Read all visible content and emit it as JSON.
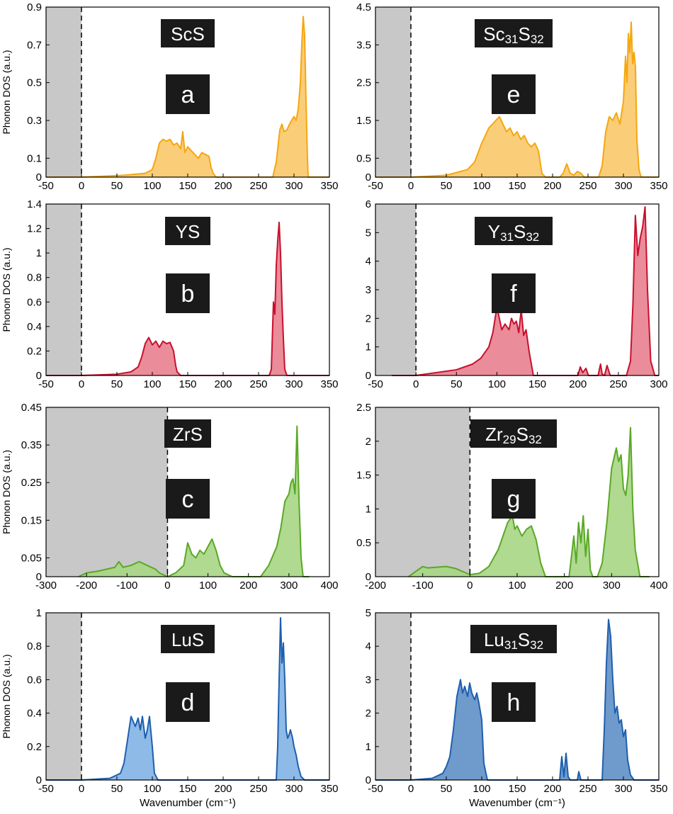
{
  "chart_data": [
    {
      "id": "a",
      "type": "area",
      "panel_letter": "a",
      "label_parts": [
        {
          "t": "ScS",
          "sub": false
        }
      ],
      "ylabel": "Phonon DOS (a.u.)",
      "xlabel": "",
      "xlim": [
        -50,
        350
      ],
      "ylim": [
        0,
        0.9
      ],
      "imag_region": [
        -50,
        0
      ],
      "xticks": [
        "-50",
        "0",
        "50",
        "100",
        "150",
        "200",
        "250",
        "300",
        "350"
      ],
      "yticks": [
        "0",
        "0.1",
        "0.3",
        "0.5",
        "0.7",
        "0.9"
      ],
      "color": "#f5a70f",
      "fill": "#f9c86a",
      "series": [
        {
          "x": [
            -50,
            0,
            60,
            90,
            100,
            105,
            110,
            115,
            120,
            125,
            130,
            135,
            140,
            143,
            146,
            150,
            155,
            160,
            165,
            170,
            175,
            180,
            183,
            186,
            190,
            270,
            275,
            280,
            283,
            286,
            290,
            295,
            300,
            303,
            306,
            309,
            311,
            313,
            315,
            317,
            319,
            320,
            325,
            350
          ],
          "y": [
            0,
            0,
            0.01,
            0.02,
            0.04,
            0.1,
            0.18,
            0.2,
            0.19,
            0.2,
            0.17,
            0.18,
            0.15,
            0.24,
            0.13,
            0.16,
            0.14,
            0.12,
            0.1,
            0.13,
            0.12,
            0.11,
            0.05,
            0.02,
            0,
            0,
            0.08,
            0.25,
            0.28,
            0.24,
            0.25,
            0.29,
            0.32,
            0.3,
            0.36,
            0.5,
            0.7,
            0.85,
            0.75,
            0.4,
            0.1,
            0,
            0,
            0
          ]
        }
      ]
    },
    {
      "id": "e",
      "type": "area",
      "panel_letter": "e",
      "label_parts": [
        {
          "t": "Sc",
          "sub": false
        },
        {
          "t": "31",
          "sub": true
        },
        {
          "t": "S",
          "sub": false
        },
        {
          "t": "32",
          "sub": true
        }
      ],
      "ylabel": "",
      "xlabel": "",
      "xlim": [
        -50,
        350
      ],
      "ylim": [
        0,
        4.5
      ],
      "imag_region": [
        -50,
        0
      ],
      "xticks": [
        "-50",
        "0",
        "50",
        "100",
        "150",
        "200",
        "250",
        "300",
        "350"
      ],
      "yticks": [
        "0",
        "0.5",
        "1.5",
        "2.5",
        "3.5",
        "4.5"
      ],
      "color": "#f5a70f",
      "fill": "#f9c86a",
      "series": [
        {
          "x": [
            -50,
            0,
            50,
            80,
            90,
            100,
            110,
            120,
            125,
            130,
            135,
            140,
            145,
            150,
            155,
            160,
            165,
            170,
            175,
            180,
            185,
            190,
            210,
            215,
            220,
            225,
            230,
            235,
            240,
            245,
            265,
            270,
            275,
            280,
            285,
            290,
            295,
            300,
            303,
            305,
            307,
            309,
            311,
            313,
            315,
            317,
            319,
            322,
            325,
            350
          ],
          "y": [
            0,
            0,
            0.05,
            0.2,
            0.4,
            0.9,
            1.3,
            1.5,
            1.6,
            1.4,
            1.2,
            1.3,
            1.1,
            1.2,
            1.0,
            1.1,
            0.9,
            0.8,
            0.9,
            0.7,
            0.1,
            0,
            0,
            0.1,
            0.35,
            0.1,
            0.05,
            0.15,
            0.1,
            0,
            0,
            0.3,
            1.2,
            1.6,
            1.5,
            1.7,
            1.4,
            2.0,
            3.2,
            2.5,
            3.8,
            3.3,
            4.1,
            3.0,
            3.3,
            2.9,
            1.0,
            0.2,
            0,
            0
          ]
        }
      ]
    },
    {
      "id": "b",
      "type": "area",
      "panel_letter": "b",
      "label_parts": [
        {
          "t": "YS",
          "sub": false
        }
      ],
      "ylabel": "Phonon DOS (a.u.)",
      "xlabel": "",
      "xlim": [
        -50,
        350
      ],
      "ylim": [
        0,
        1.4
      ],
      "imag_region": [
        -50,
        0
      ],
      "xticks": [
        "-50",
        "0",
        "50",
        "100",
        "150",
        "200",
        "250",
        "300",
        "350"
      ],
      "yticks": [
        "0",
        "0.2",
        "0.4",
        "0.6",
        "0.8",
        "1",
        "1.2",
        "1.4"
      ],
      "color": "#c8102e",
      "fill": "#e8808f",
      "series": [
        {
          "x": [
            -50,
            0,
            50,
            70,
            80,
            85,
            90,
            95,
            100,
            105,
            110,
            115,
            120,
            125,
            130,
            133,
            135,
            140,
            265,
            268,
            271,
            273,
            275,
            277,
            279,
            281,
            283,
            285,
            287,
            290,
            350
          ],
          "y": [
            0,
            0,
            0.01,
            0.03,
            0.07,
            0.15,
            0.26,
            0.31,
            0.25,
            0.28,
            0.23,
            0.28,
            0.26,
            0.27,
            0.2,
            0.08,
            0.03,
            0,
            0,
            0.05,
            0.6,
            0.5,
            0.9,
            1.1,
            1.25,
            1.0,
            0.6,
            0.3,
            0.05,
            0,
            0
          ]
        }
      ]
    },
    {
      "id": "f",
      "type": "area",
      "panel_letter": "f",
      "label_parts": [
        {
          "t": "Y",
          "sub": false
        },
        {
          "t": "31",
          "sub": true
        },
        {
          "t": "S",
          "sub": false
        },
        {
          "t": "32",
          "sub": true
        }
      ],
      "ylabel": "",
      "xlabel": "",
      "xlim": [
        -50,
        300
      ],
      "ylim": [
        0,
        6
      ],
      "imag_region": [
        -50,
        0
      ],
      "xticks": [
        "-50",
        "0",
        "50",
        "100",
        "150",
        "200",
        "250",
        "300"
      ],
      "yticks": [
        "0",
        "1",
        "2",
        "3",
        "4",
        "5",
        "6"
      ],
      "color": "#c8102e",
      "fill": "#e8808f",
      "series": [
        {
          "x": [
            -30,
            0,
            50,
            70,
            80,
            90,
            95,
            100,
            103,
            106,
            110,
            115,
            118,
            121,
            124,
            127,
            130,
            133,
            136,
            140,
            145,
            200,
            203,
            206,
            210,
            213,
            225,
            228,
            230,
            233,
            236,
            240,
            260,
            265,
            268,
            271,
            274,
            277,
            280,
            283,
            286,
            290,
            295,
            300
          ],
          "y": [
            0,
            0,
            0.2,
            0.4,
            0.6,
            1.0,
            1.5,
            2.4,
            2.0,
            1.6,
            1.8,
            1.6,
            2.0,
            1.8,
            1.9,
            1.5,
            2.3,
            1.4,
            1.6,
            0.8,
            0,
            0,
            0.3,
            0.1,
            0.25,
            0,
            0,
            0.4,
            0.05,
            0,
            0.35,
            0,
            0,
            0.5,
            2.5,
            5.6,
            4.2,
            4.8,
            5.2,
            5.9,
            3.0,
            0.5,
            0,
            0
          ]
        }
      ]
    },
    {
      "id": "c",
      "type": "area",
      "panel_letter": "c",
      "label_parts": [
        {
          "t": "ZrS",
          "sub": false
        }
      ],
      "ylabel": "Phonon DOS (a.u.)",
      "xlabel": "",
      "xlim": [
        -300,
        400
      ],
      "ylim": [
        0,
        0.45
      ],
      "imag_region": [
        -300,
        0
      ],
      "xticks": [
        "-300",
        "-200",
        "-100",
        "0",
        "100",
        "200",
        "300",
        "400"
      ],
      "yticks": [
        "0",
        "0.05",
        "0.15",
        "0.25",
        "0.35",
        "0.45"
      ],
      "color": "#5aa827",
      "fill": "#a6d683",
      "series": [
        {
          "x": [
            -220,
            -200,
            -170,
            -150,
            -130,
            -120,
            -110,
            -90,
            -70,
            -60,
            -50,
            -40,
            -30,
            -20,
            0,
            20,
            40,
            50,
            60,
            70,
            80,
            90,
            100,
            110,
            120,
            130,
            140,
            160,
            230,
            250,
            270,
            280,
            290,
            300,
            305,
            310,
            315,
            320,
            325,
            330,
            335,
            350
          ],
          "y": [
            0,
            0.01,
            0.015,
            0.02,
            0.025,
            0.04,
            0.025,
            0.03,
            0.04,
            0.035,
            0.03,
            0.025,
            0.02,
            0.01,
            0,
            0.01,
            0.03,
            0.09,
            0.06,
            0.05,
            0.07,
            0.06,
            0.08,
            0.1,
            0.07,
            0.03,
            0.01,
            0,
            0,
            0.03,
            0.08,
            0.13,
            0.2,
            0.22,
            0.25,
            0.26,
            0.22,
            0.4,
            0.2,
            0.05,
            0,
            0
          ]
        }
      ]
    },
    {
      "id": "g",
      "type": "area",
      "panel_letter": "g",
      "label_parts": [
        {
          "t": "Zr",
          "sub": false
        },
        {
          "t": "29",
          "sub": true
        },
        {
          "t": "S",
          "sub": false
        },
        {
          "t": "32",
          "sub": true
        }
      ],
      "ylabel": "",
      "xlabel": "",
      "xlim": [
        -200,
        400
      ],
      "ylim": [
        0,
        2.5
      ],
      "imag_region": [
        -200,
        0
      ],
      "xticks": [
        "-200",
        "-100",
        "0",
        "100",
        "200",
        "300",
        "400"
      ],
      "yticks": [
        "0",
        "0.5",
        "1",
        "1.5",
        "2",
        "2.5"
      ],
      "color": "#5aa827",
      "fill": "#a6d683",
      "series": [
        {
          "x": [
            -130,
            -110,
            -100,
            -90,
            -70,
            -50,
            -30,
            -10,
            0,
            20,
            40,
            60,
            70,
            80,
            90,
            95,
            100,
            110,
            120,
            130,
            140,
            150,
            160,
            210,
            215,
            220,
            225,
            230,
            235,
            240,
            245,
            250,
            255,
            260,
            270,
            280,
            290,
            300,
            310,
            315,
            320,
            325,
            330,
            335,
            340,
            345,
            350,
            360,
            380
          ],
          "y": [
            0,
            0.1,
            0.15,
            0.13,
            0.14,
            0.15,
            0.12,
            0.06,
            0.03,
            0.05,
            0.15,
            0.4,
            0.6,
            0.8,
            0.9,
            0.7,
            0.75,
            0.6,
            0.7,
            0.75,
            0.55,
            0.2,
            0,
            0,
            0.3,
            0.6,
            0.2,
            0.8,
            0.5,
            0.9,
            0.3,
            0.7,
            0.1,
            0,
            0,
            0.2,
            0.8,
            1.6,
            1.9,
            1.7,
            1.8,
            1.3,
            1.2,
            1.5,
            2.2,
            1.0,
            0.4,
            0,
            0
          ]
        }
      ]
    },
    {
      "id": "d",
      "type": "area",
      "panel_letter": "d",
      "label_parts": [
        {
          "t": "LuS",
          "sub": false
        }
      ],
      "ylabel": "Phonon DOS (a.u.)",
      "xlabel": "Wavenumber (cm⁻¹)",
      "xlim": [
        -50,
        350
      ],
      "ylim": [
        0,
        1
      ],
      "imag_region": [
        -50,
        0
      ],
      "xticks": [
        "-50",
        "0",
        "50",
        "100",
        "150",
        "200",
        "250",
        "300",
        "350"
      ],
      "yticks": [
        "0",
        "0.2",
        "0.4",
        "0.6",
        "0.8",
        "1"
      ],
      "color": "#1f5fad",
      "fill": "#82b2e4",
      "series": [
        {
          "x": [
            -50,
            0,
            40,
            55,
            60,
            65,
            70,
            73,
            76,
            80,
            83,
            86,
            90,
            93,
            96,
            100,
            103,
            108,
            275,
            277,
            279,
            281,
            283,
            285,
            287,
            289,
            291,
            293,
            295,
            298,
            300,
            303,
            306,
            310,
            315,
            350
          ],
          "y": [
            0,
            0,
            0.01,
            0.04,
            0.1,
            0.24,
            0.38,
            0.35,
            0.32,
            0.37,
            0.3,
            0.38,
            0.25,
            0.3,
            0.38,
            0.2,
            0.04,
            0,
            0,
            0.2,
            0.6,
            0.97,
            0.7,
            0.82,
            0.6,
            0.3,
            0.25,
            0.27,
            0.3,
            0.25,
            0.2,
            0.15,
            0.08,
            0.02,
            0,
            0
          ]
        }
      ]
    },
    {
      "id": "h",
      "type": "area",
      "panel_letter": "h",
      "label_parts": [
        {
          "t": "Lu",
          "sub": false
        },
        {
          "t": "31",
          "sub": true
        },
        {
          "t": "S",
          "sub": false
        },
        {
          "t": "32",
          "sub": true
        }
      ],
      "ylabel": "",
      "xlabel": "Wavenumber (cm⁻¹)",
      "xlim": [
        -50,
        350
      ],
      "ylim": [
        0,
        5
      ],
      "imag_region": [
        -50,
        0
      ],
      "xticks": [
        "-50",
        "0",
        "50",
        "100",
        "150",
        "200",
        "250",
        "300",
        "350"
      ],
      "yticks": [
        "0",
        "1",
        "2",
        "3",
        "4",
        "5"
      ],
      "color": "#1f5fad",
      "fill": "#5f8fc7",
      "series": [
        {
          "x": [
            -50,
            0,
            30,
            45,
            50,
            55,
            60,
            65,
            70,
            73,
            76,
            80,
            83,
            86,
            90,
            93,
            96,
            100,
            103,
            108,
            210,
            213,
            216,
            219,
            222,
            225,
            235,
            237,
            240,
            270,
            273,
            276,
            279,
            282,
            285,
            288,
            291,
            294,
            297,
            300,
            303,
            306,
            310,
            315,
            350
          ],
          "y": [
            0,
            0,
            0.05,
            0.2,
            0.4,
            0.7,
            1.5,
            2.5,
            3.0,
            2.6,
            2.8,
            2.5,
            2.9,
            2.6,
            2.4,
            2.6,
            2.3,
            1.8,
            0.5,
            0,
            0,
            0.7,
            0.1,
            0.8,
            0.1,
            0,
            0,
            0.25,
            0,
            0,
            1.5,
            3.5,
            4.8,
            4.3,
            3.0,
            2.0,
            2.2,
            1.7,
            1.8,
            1.3,
            1.5,
            0.6,
            0.15,
            0,
            0
          ]
        }
      ]
    }
  ]
}
